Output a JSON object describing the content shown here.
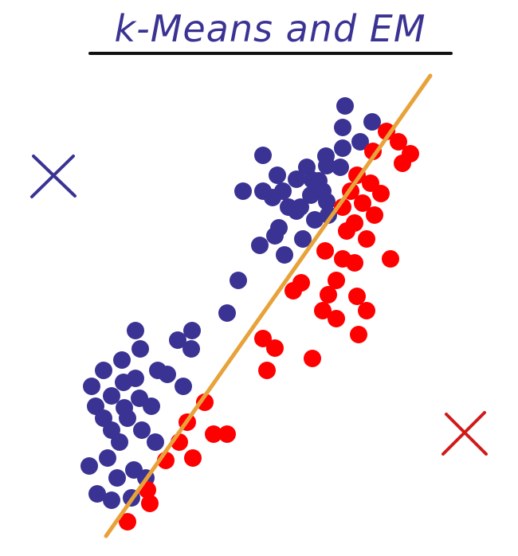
{
  "title": "k-Means and EM",
  "colors": {
    "title": "#3b3393",
    "underline": "#111111",
    "cluster_a": "#3b3393",
    "cluster_b": "#ff0000",
    "boundary": "#e8a23a",
    "cross_a": "#3b3393",
    "cross_b": "#d11a1a"
  },
  "icons": {
    "cross_a": "x-mark-icon",
    "cross_b": "x-mark-icon"
  },
  "clusters": {
    "blue": [
      [
        433,
        133
      ],
      [
        467,
        153
      ],
      [
        430,
        160
      ],
      [
        452,
        178
      ],
      [
        430,
        186
      ],
      [
        330,
        195
      ],
      [
        409,
        196
      ],
      [
        385,
        210
      ],
      [
        410,
        208
      ],
      [
        427,
        210
      ],
      [
        348,
        220
      ],
      [
        372,
        225
      ],
      [
        392,
        226
      ],
      [
        400,
        227
      ],
      [
        355,
        240
      ],
      [
        330,
        240
      ],
      [
        342,
        248
      ],
      [
        305,
        240
      ],
      [
        362,
        260
      ],
      [
        372,
        265
      ],
      [
        390,
        245
      ],
      [
        405,
        240
      ],
      [
        410,
        253
      ],
      [
        412,
        270
      ],
      [
        377,
        260
      ],
      [
        395,
        276
      ],
      [
        350,
        286
      ],
      [
        345,
        296
      ],
      [
        380,
        300
      ],
      [
        326,
        308
      ],
      [
        357,
        320
      ],
      [
        299,
        352
      ],
      [
        285,
        393
      ],
      [
        241,
        415
      ],
      [
        170,
        415
      ],
      [
        223,
        427
      ],
      [
        176,
        438
      ],
      [
        240,
        438
      ],
      [
        153,
        452
      ],
      [
        130,
        465
      ],
      [
        198,
        465
      ],
      [
        210,
        470
      ],
      [
        170,
        475
      ],
      [
        155,
        480
      ],
      [
        115,
        485
      ],
      [
        230,
        485
      ],
      [
        140,
        497
      ],
      [
        175,
        500
      ],
      [
        120,
        510
      ],
      [
        156,
        512
      ],
      [
        190,
        510
      ],
      [
        130,
        525
      ],
      [
        160,
        525
      ],
      [
        140,
        540
      ],
      [
        178,
        540
      ],
      [
        150,
        555
      ],
      [
        195,
        555
      ],
      [
        135,
        575
      ],
      [
        112,
        585
      ],
      [
        168,
        590
      ],
      [
        147,
        600
      ],
      [
        183,
        600
      ],
      [
        122,
        620
      ],
      [
        140,
        628
      ],
      [
        165,
        625
      ]
    ],
    "red": [
      [
        485,
        165
      ],
      [
        500,
        178
      ],
      [
        515,
        193
      ],
      [
        468,
        190
      ],
      [
        505,
        205
      ],
      [
        448,
        220
      ],
      [
        465,
        230
      ],
      [
        440,
        240
      ],
      [
        478,
        243
      ],
      [
        455,
        255
      ],
      [
        430,
        260
      ],
      [
        470,
        270
      ],
      [
        445,
        280
      ],
      [
        435,
        290
      ],
      [
        460,
        300
      ],
      [
        408,
        315
      ],
      [
        430,
        325
      ],
      [
        445,
        330
      ],
      [
        490,
        325
      ],
      [
        378,
        355
      ],
      [
        422,
        352
      ],
      [
        368,
        365
      ],
      [
        412,
        370
      ],
      [
        448,
        372
      ],
      [
        405,
        390
      ],
      [
        460,
        390
      ],
      [
        422,
        400
      ],
      [
        450,
        420
      ],
      [
        330,
        425
      ],
      [
        345,
        437
      ],
      [
        335,
        465
      ],
      [
        392,
        450
      ],
      [
        257,
        505
      ],
      [
        235,
        530
      ],
      [
        285,
        545
      ],
      [
        268,
        545
      ],
      [
        225,
        555
      ],
      [
        242,
        575
      ],
      [
        208,
        578
      ],
      [
        185,
        615
      ],
      [
        188,
        632
      ],
      [
        160,
        655
      ]
    ]
  }
}
